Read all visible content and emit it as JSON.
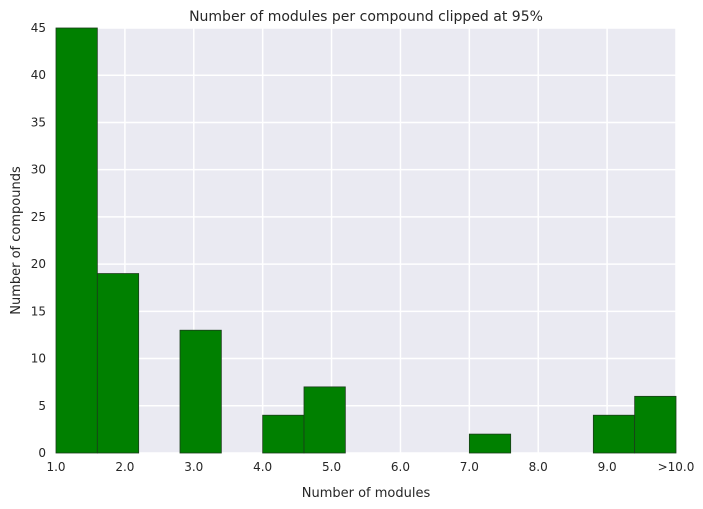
{
  "chart_data": {
    "type": "bar",
    "title": "Number of modules per compound clipped at 95%",
    "xlabel": "Number of modules",
    "ylabel": "Number of compounds",
    "xlim": [
      1.0,
      10.0
    ],
    "ylim": [
      0,
      45
    ],
    "x_ticks": [
      {
        "value": 1.0,
        "label": "1.0"
      },
      {
        "value": 2.0,
        "label": "2.0"
      },
      {
        "value": 3.0,
        "label": "3.0"
      },
      {
        "value": 4.0,
        "label": "4.0"
      },
      {
        "value": 5.0,
        "label": "5.0"
      },
      {
        "value": 6.0,
        "label": "6.0"
      },
      {
        "value": 7.0,
        "label": "7.0"
      },
      {
        "value": 8.0,
        "label": "8.0"
      },
      {
        "value": 9.0,
        "label": "9.0"
      },
      {
        "value": 10.0,
        "label": ">10.0"
      }
    ],
    "y_ticks": [
      0,
      5,
      10,
      15,
      20,
      25,
      30,
      35,
      40,
      45
    ],
    "bins": [
      {
        "start": 1.0,
        "end": 1.6,
        "value": 45
      },
      {
        "start": 1.6,
        "end": 2.2,
        "value": 19
      },
      {
        "start": 2.2,
        "end": 2.8,
        "value": 0
      },
      {
        "start": 2.8,
        "end": 3.4,
        "value": 13
      },
      {
        "start": 3.4,
        "end": 4.0,
        "value": 0
      },
      {
        "start": 4.0,
        "end": 4.6,
        "value": 4
      },
      {
        "start": 4.6,
        "end": 5.2,
        "value": 7
      },
      {
        "start": 5.2,
        "end": 5.8,
        "value": 0
      },
      {
        "start": 5.8,
        "end": 6.4,
        "value": 0
      },
      {
        "start": 6.4,
        "end": 7.0,
        "value": 0
      },
      {
        "start": 7.0,
        "end": 7.6,
        "value": 2
      },
      {
        "start": 7.6,
        "end": 8.2,
        "value": 0
      },
      {
        "start": 8.2,
        "end": 8.8,
        "value": 0
      },
      {
        "start": 8.8,
        "end": 9.4,
        "value": 4
      },
      {
        "start": 9.4,
        "end": 10.0,
        "value": 6
      }
    ],
    "grid": true,
    "colors": {
      "bar_fill": "#008000",
      "bar_edge": "#1a3d1a",
      "plot_background": "#EAEAF2",
      "grid": "#ffffff",
      "text": "#262626"
    }
  }
}
